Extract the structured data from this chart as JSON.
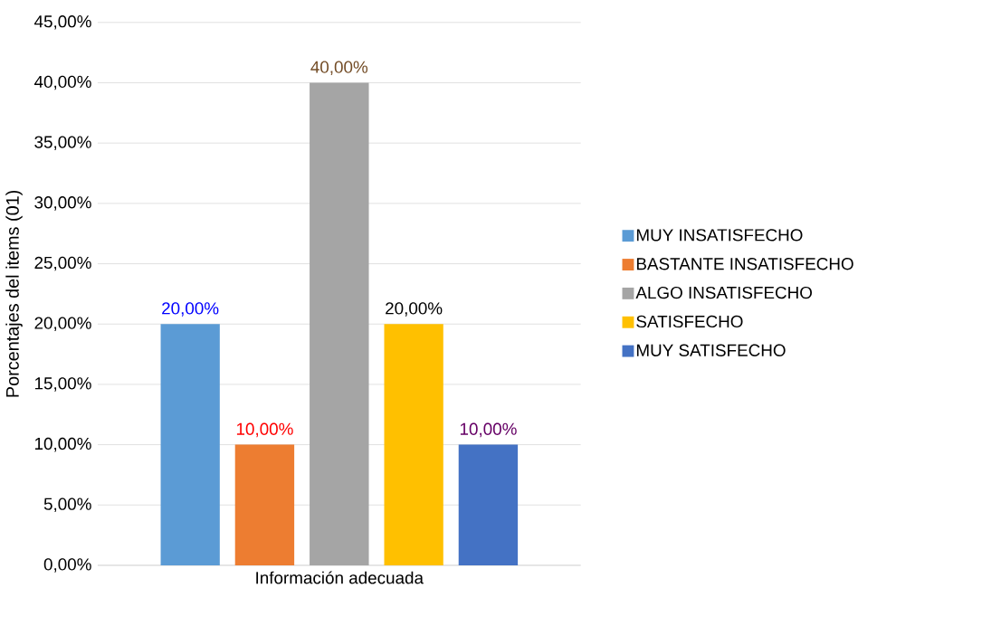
{
  "chart_data": {
    "type": "bar",
    "ylabel": "Porcentajes del items (01)",
    "categories": [
      "Información adecuada"
    ],
    "series": [
      {
        "name": "MUY INSATISFECHO",
        "color": "#5b9bd5",
        "values": [
          20
        ],
        "value_labels": [
          "20,00%"
        ]
      },
      {
        "name": "BASTANTE INSATISFECHO",
        "color": "#ed7d31",
        "values": [
          10
        ],
        "value_labels": [
          "10,00%"
        ]
      },
      {
        "name": "ALGO INSATISFECHO",
        "color": "#a5a5a5",
        "values": [
          40
        ],
        "value_labels": [
          "40,00%"
        ]
      },
      {
        "name": "SATISFECHO",
        "color": "#ffc000",
        "values": [
          20
        ],
        "value_labels": [
          "20,00%"
        ]
      },
      {
        "name": "MUY SATISFECHO",
        "color": "#4472c4",
        "values": [
          10
        ],
        "value_labels": [
          "10,00%"
        ]
      }
    ],
    "ylim": [
      0,
      45
    ],
    "yticks": [
      {
        "value": 0,
        "label": "0,00%"
      },
      {
        "value": 5,
        "label": "5,00%"
      },
      {
        "value": 10,
        "label": "10,00%"
      },
      {
        "value": 15,
        "label": "15,00%"
      },
      {
        "value": 20,
        "label": "20,00%"
      },
      {
        "value": 25,
        "label": "25,00%"
      },
      {
        "value": 30,
        "label": "30,00%"
      },
      {
        "value": 35,
        "label": "35,00%"
      },
      {
        "value": 40,
        "label": "40,00%"
      },
      {
        "value": 45,
        "label": "45,00%"
      }
    ],
    "grid": "y",
    "legend": "right"
  }
}
